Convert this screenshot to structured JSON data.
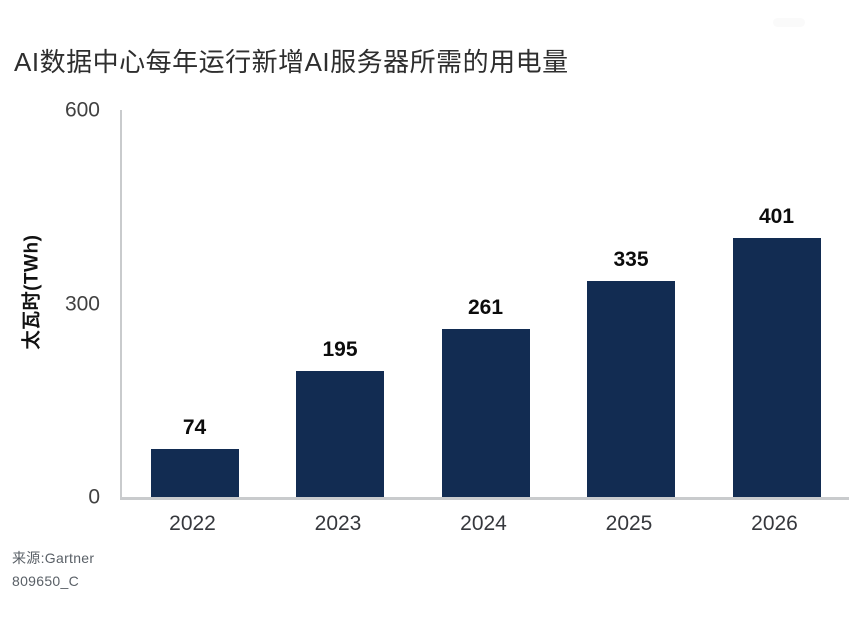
{
  "title": "AI数据中心每年运行新增AI服务器所需的用电量",
  "source": {
    "line1": "来源:Gartner",
    "line2": "809650_C"
  },
  "colors": {
    "bar": "#122c52",
    "axis": "#c9cbcd",
    "title_text": "#2e2e2e",
    "source_text": "#5a6067"
  },
  "chart_data": {
    "type": "bar",
    "title": "AI数据中心每年运行新增AI服务器所需的用电量",
    "categories": [
      "2022",
      "2023",
      "2024",
      "2025",
      "2026"
    ],
    "values": [
      74,
      195,
      261,
      335,
      401
    ],
    "xlabel": "",
    "ylabel": "太瓦时(TWh)",
    "ylim": [
      0,
      600
    ],
    "yticks": [
      0,
      300,
      600
    ],
    "grid": false,
    "legend_position": "none",
    "bar_color": "#122c52",
    "value_labels_shown": true,
    "source": "来源:Gartner 809650_C"
  }
}
